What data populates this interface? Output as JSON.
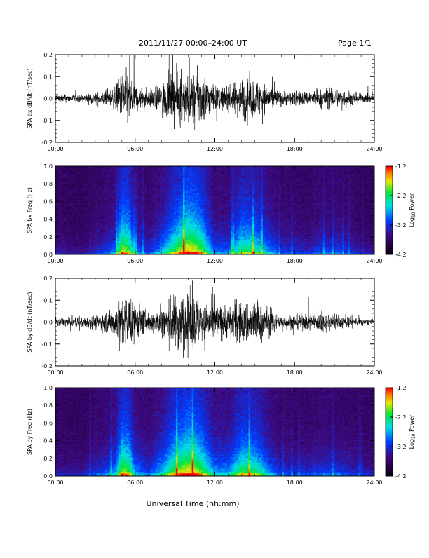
{
  "header": {
    "title": "2011/11/27   00:00–24:00 UT",
    "page": "Page 1/1"
  },
  "xlabel": "Universal Time (hh:mm)",
  "colorbar": {
    "label_main": "Log",
    "label_sub": "10",
    "label_tail": " Power",
    "ticks": [
      "-1.2",
      "-2.2",
      "-3.2",
      "-4.2"
    ]
  },
  "chart_data": [
    {
      "type": "line",
      "ylabel": "SPA bx dB/dt (nT/sec)",
      "xlim": [
        0,
        24
      ],
      "ylim": [
        -0.2,
        0.2
      ],
      "x_ticks": [
        "00:00",
        "06:00",
        "12:00",
        "18:00",
        "24:00"
      ],
      "y_ticks": [
        "0.2",
        "0.1",
        "0.0",
        "-0.1",
        "-0.2"
      ],
      "series": [
        {
          "hours": [
            0,
            1,
            2,
            3,
            4,
            4.5,
            5,
            5.5,
            6,
            7,
            8,
            9,
            10,
            10.5,
            11,
            12,
            13,
            14,
            15,
            15.5,
            16,
            17,
            18,
            19,
            20,
            21,
            22,
            23,
            24
          ],
          "amplitude": [
            0.04,
            0.03,
            0.03,
            0.05,
            0.07,
            0.09,
            0.22,
            0.22,
            0.12,
            0.07,
            0.12,
            0.22,
            0.22,
            0.22,
            0.22,
            0.1,
            0.09,
            0.18,
            0.16,
            0.13,
            0.11,
            0.06,
            0.06,
            0.06,
            0.08,
            0.08,
            0.07,
            0.04,
            0.03
          ]
        }
      ]
    },
    {
      "type": "heatmap",
      "ylabel": "SPA bx Freq (Hz)",
      "xlim": [
        0,
        24
      ],
      "ylim": [
        0,
        1.0
      ],
      "zlim": [
        -4.2,
        -1.2
      ],
      "x_ticks": [
        "00:00",
        "06:00",
        "12:00",
        "18:00",
        "24:00"
      ],
      "y_ticks": [
        "1.0",
        "0.8",
        "0.6",
        "0.4",
        "0.2",
        "0.0"
      ],
      "activity": {
        "hours": [
          0,
          1,
          2,
          3,
          4,
          4.5,
          5,
          5.5,
          6,
          7,
          8,
          9,
          10,
          10.5,
          11,
          12,
          13,
          14,
          15,
          15.5,
          16,
          17,
          18,
          19,
          20,
          21,
          22,
          23,
          24
        ],
        "level": [
          0.2,
          0.15,
          0.15,
          0.25,
          0.35,
          0.45,
          0.9,
          0.85,
          0.45,
          0.3,
          0.5,
          0.8,
          1.0,
          0.95,
          0.85,
          0.4,
          0.4,
          0.75,
          0.7,
          0.6,
          0.5,
          0.3,
          0.3,
          0.25,
          0.35,
          0.35,
          0.3,
          0.2,
          0.15
        ]
      }
    },
    {
      "type": "line",
      "ylabel": "SPA by dB/dt (nT/sec)",
      "xlim": [
        0,
        24
      ],
      "ylim": [
        -0.2,
        0.2
      ],
      "x_ticks": [
        "00:00",
        "06:00",
        "12:00",
        "18:00",
        "24:00"
      ],
      "y_ticks": [
        "0.2",
        "0.1",
        "0.0",
        "-0.1",
        "-0.2"
      ],
      "series": [
        {
          "hours": [
            0,
            1,
            2,
            3,
            4,
            4.5,
            5,
            5.5,
            6,
            7,
            8,
            9,
            10,
            10.5,
            11,
            12,
            13,
            14,
            15,
            15.5,
            16,
            17,
            18,
            19,
            20,
            21,
            22,
            23,
            24
          ],
          "amplitude": [
            0.03,
            0.04,
            0.05,
            0.06,
            0.09,
            0.12,
            0.22,
            0.22,
            0.16,
            0.08,
            0.14,
            0.22,
            0.22,
            0.22,
            0.22,
            0.14,
            0.14,
            0.2,
            0.18,
            0.15,
            0.12,
            0.06,
            0.06,
            0.07,
            0.08,
            0.07,
            0.05,
            0.03,
            0.02
          ]
        }
      ]
    },
    {
      "type": "heatmap",
      "ylabel": "SPA by Freq (Hz)",
      "xlim": [
        0,
        24
      ],
      "ylim": [
        0,
        1.0
      ],
      "zlim": [
        -4.2,
        -1.2
      ],
      "x_ticks": [
        "00:00",
        "06:00",
        "12:00",
        "18:00",
        "24:00"
      ],
      "y_ticks": [
        "1.0",
        "0.8",
        "0.6",
        "0.4",
        "0.2",
        "0.0"
      ],
      "activity": {
        "hours": [
          0,
          1,
          2,
          3,
          4,
          4.5,
          5,
          5.5,
          6,
          7,
          8,
          9,
          10,
          10.5,
          11,
          12,
          13,
          14,
          15,
          15.5,
          16,
          17,
          18,
          19,
          20,
          21,
          22,
          23,
          24
        ],
        "level": [
          0.2,
          0.2,
          0.2,
          0.3,
          0.4,
          0.5,
          0.9,
          0.85,
          0.5,
          0.35,
          0.55,
          0.85,
          1.0,
          0.95,
          0.85,
          0.5,
          0.5,
          0.8,
          0.75,
          0.65,
          0.5,
          0.3,
          0.3,
          0.3,
          0.35,
          0.35,
          0.3,
          0.25,
          0.2
        ]
      }
    }
  ]
}
